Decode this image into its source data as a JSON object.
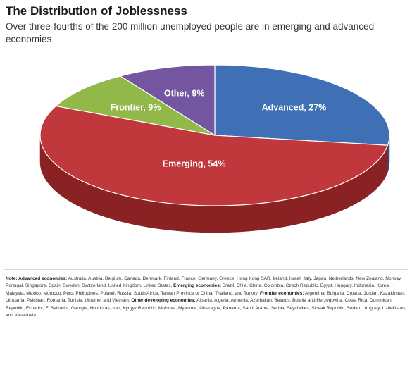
{
  "header": {
    "title": "The Distribution of Joblessness",
    "subtitle": "Over three-fourths of the 200 million unemployed people are in emerging and advanced economies"
  },
  "chart_data": {
    "type": "pie",
    "style": "3d-tilted",
    "title": "The Distribution of Joblessness",
    "subtitle": "Over three-fourths of the 200 million unemployed people are in emerging and advanced economies",
    "unit": "%",
    "categories": [
      "Advanced",
      "Emerging",
      "Frontier",
      "Other"
    ],
    "values": [
      27,
      54,
      9,
      9
    ],
    "labels": [
      "Advanced, 27%",
      "Emerging, 54%",
      "Frontier, 9%",
      "Other, 9%"
    ],
    "colors": [
      "#3f6fb5",
      "#c0383b",
      "#93b84a",
      "#7355a0"
    ],
    "side_colors": [
      "#2c5088",
      "#8a2224",
      "#6b8a30",
      "#4f3a73"
    ],
    "legend": "none",
    "data_labels": "on-slice"
  },
  "note": {
    "segments": [
      {
        "bold": true,
        "text": "Note: Advanced economies:"
      },
      {
        "bold": false,
        "text": " Australia, Austria, Belgium, Canada, Denmark, Finland, France, Germany, Greece, Hong Kong SAR, Ireland, Israel, Italy, Japan, Netherlands, New Zealand, Norway, Portugal, Singapore, Spain, Sweden, Switzerland, United Kingdom, United States. "
      },
      {
        "bold": true,
        "text": "Emerging economies:"
      },
      {
        "bold": false,
        "text": " Brazil, Chile, China, Colombia, Czech Republic, Egypt, Hungary, Indonesia, Korea, Malaysia, Mexico, Morocco, Peru, Philippines, Poland, Russia, South Africa, Taiwan Province of China, Thailand, and Turkey. "
      },
      {
        "bold": true,
        "text": "Frontier economies:"
      },
      {
        "bold": false,
        "text": " Argentina, Bulgaria, Croatia, Jordan, Kazakhstan, Lithuania, Pakistan, Romania, Tunisia, Ukraine, and Vietnam. "
      },
      {
        "bold": true,
        "text": "Other developing economies:"
      },
      {
        "bold": false,
        "text": " Albania, Algeria, Armenia, Azerbaijan, Belarus, Bosnia and Herzegovina, Costa Rica, Dominican Republic, Ecuador, El Salvador, Georgia, Honduras, Iran, Kyrgyz Republic, Moldova, Myanmar, Nicaragua, Panama, Saudi Arabia, Serbia, Seychelles, Slovak Republic, Sudan, Uruguay, Uzbekistan, and Venezuela."
      }
    ]
  }
}
